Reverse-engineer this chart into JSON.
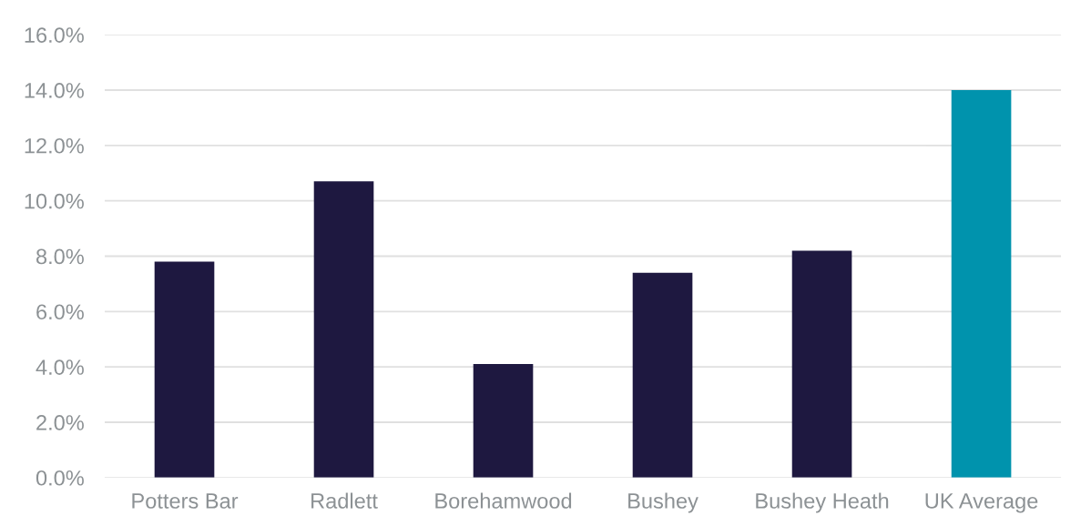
{
  "chart_data": {
    "type": "bar",
    "categories": [
      "Potters Bar",
      "Radlett",
      "Borehamwood",
      "Bushey",
      "Bushey Heath",
      "UK Average"
    ],
    "values": [
      7.8,
      10.7,
      4.1,
      7.4,
      8.2,
      14.0
    ],
    "colors": [
      "#1e1840",
      "#1e1840",
      "#1e1840",
      "#1e1840",
      "#1e1840",
      "#0093ad"
    ],
    "ylim": [
      0,
      16
    ],
    "yticks": [
      {
        "value": 0,
        "label": "0.0%"
      },
      {
        "value": 2,
        "label": "2.0%"
      },
      {
        "value": 4,
        "label": "4.0%"
      },
      {
        "value": 6,
        "label": "6.0%"
      },
      {
        "value": 8,
        "label": "8.0%"
      },
      {
        "value": 10,
        "label": "10.0%"
      },
      {
        "value": 12,
        "label": "12.0%"
      },
      {
        "value": 14,
        "label": "14.0%"
      },
      {
        "value": 16,
        "label": "16.0%"
      }
    ],
    "grid": "y",
    "legend": false
  }
}
